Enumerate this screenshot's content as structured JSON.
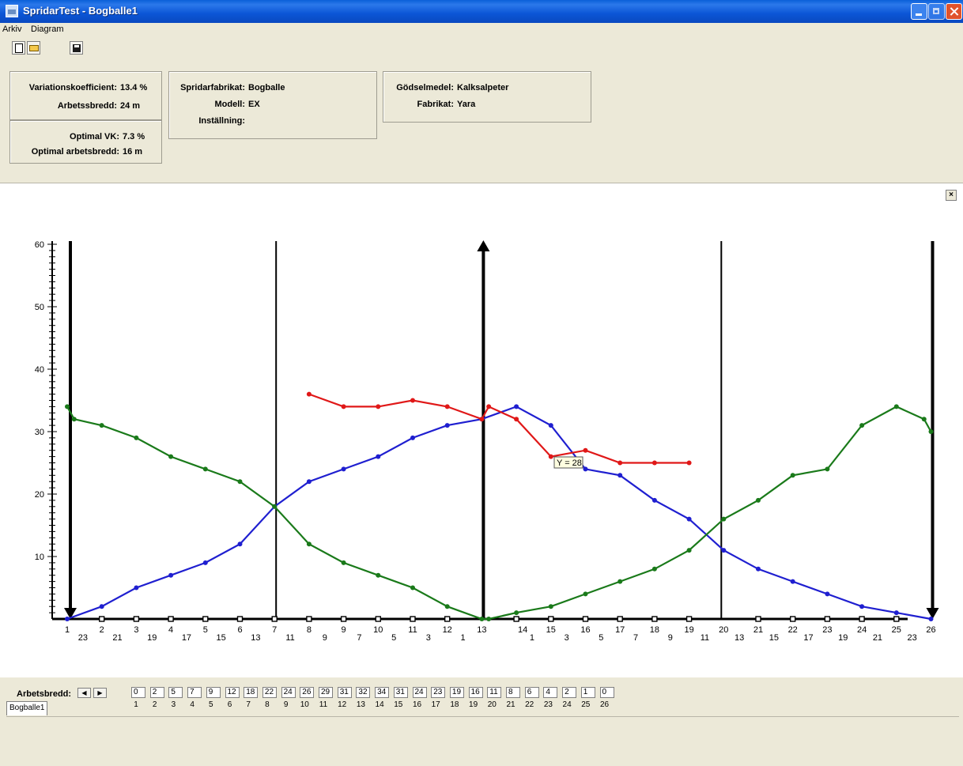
{
  "window": {
    "title": "SpridarTest - Bogballe1"
  },
  "menu": {
    "items": [
      "Arkiv",
      "Diagram"
    ]
  },
  "info": {
    "vk_label": "Variationskoefficient:",
    "vk_value": "13.4 %",
    "ab_label": "Arbetssbredd:",
    "ab_value": "24 m",
    "opt_vk_label": "Optimal VK:",
    "opt_vk_value": "7.3 %",
    "opt_ab_label": "Optimal arbetsbredd:",
    "opt_ab_value": "16 m",
    "fabrikat_label": "Spridarfabrikat:",
    "fabrikat_value": "Bogballe",
    "modell_label": "Modell:",
    "modell_value": "EX",
    "installning_label": "Inställning:",
    "installning_value": "",
    "godsel_label": "Gödselmedel:",
    "godsel_value": "Kalksalpeter",
    "g_fabrikat_label": "Fabrikat:",
    "g_fabrikat_value": "Yara"
  },
  "chart_close_glyph": "×",
  "chart_data": {
    "type": "line",
    "ylim": [
      0,
      60
    ],
    "yticks": [
      "10",
      "20",
      "30",
      "40",
      "50",
      "60"
    ],
    "x_top_labels": [
      "1",
      "2",
      "3",
      "4",
      "5",
      "6",
      "7",
      "8",
      "9",
      "10",
      "11",
      "12",
      "13",
      "14",
      "15",
      "16",
      "17",
      "18",
      "19",
      "20",
      "21",
      "22",
      "23",
      "24",
      "25",
      "26"
    ],
    "x_bottom_labels": [
      "23",
      "21",
      "19",
      "17",
      "15",
      "13",
      "11",
      "9",
      "7",
      "5",
      "3",
      "1",
      "1",
      "3",
      "5",
      "7",
      "9",
      "11",
      "13",
      "15",
      "17",
      "19",
      "21",
      "23"
    ],
    "tooltip": "Y = 28",
    "colors": {
      "blue": "#1f1fd0",
      "green": "#1a7a1a",
      "red": "#e01818"
    },
    "series": [
      {
        "color": "blue",
        "x": [
          1,
          2,
          3,
          4,
          5,
          6,
          7,
          8,
          9,
          10,
          11,
          12,
          13,
          14,
          15,
          16,
          17,
          18,
          19,
          20,
          21,
          22,
          23,
          24,
          25,
          26
        ],
        "y": [
          0,
          2,
          5,
          7,
          9,
          12,
          18,
          22,
          24,
          26,
          29,
          31,
          32,
          34,
          31,
          24,
          23,
          19,
          16,
          11,
          8,
          6,
          4,
          2,
          1,
          0
        ]
      },
      {
        "color": "green",
        "x": [
          1,
          1.2,
          2,
          3,
          4,
          5,
          6,
          7,
          8,
          9,
          10,
          11,
          12,
          13,
          13.2,
          14,
          15,
          16,
          17,
          18,
          19,
          20,
          21,
          22,
          23,
          24,
          25,
          25.8,
          26
        ],
        "y": [
          34,
          32,
          31,
          29,
          26,
          24,
          22,
          18,
          12,
          9,
          7,
          5,
          2,
          0,
          0,
          1,
          2,
          4,
          6,
          8,
          11,
          16,
          19,
          23,
          24,
          31,
          34,
          32,
          30
        ]
      },
      {
        "color": "red",
        "x": [
          8,
          9,
          10,
          11,
          12,
          13,
          13.2,
          14,
          15,
          16,
          17,
          18,
          19
        ],
        "y": [
          36,
          34,
          34,
          35,
          34,
          32,
          34,
          32,
          26,
          27,
          25,
          25,
          25
        ]
      }
    ],
    "vlines_thin": [
      7,
      20
    ],
    "vlines_thick_down": [
      1,
      26
    ],
    "vline_thick_up": 13
  },
  "arbetsbredd": {
    "label": "Arbetsbredd:",
    "values": [
      "0",
      "2",
      "5",
      "7",
      "9",
      "12",
      "18",
      "22",
      "24",
      "26",
      "29",
      "31",
      "32",
      "34",
      "31",
      "24",
      "23",
      "19",
      "16",
      "11",
      "8",
      "6",
      "4",
      "2",
      "1",
      "0"
    ],
    "indices": [
      "1",
      "2",
      "3",
      "4",
      "5",
      "6",
      "7",
      "8",
      "9",
      "10",
      "11",
      "12",
      "13",
      "14",
      "15",
      "16",
      "17",
      "18",
      "19",
      "20",
      "21",
      "22",
      "23",
      "24",
      "25",
      "26"
    ]
  },
  "tabs": [
    "Bogballe1"
  ]
}
